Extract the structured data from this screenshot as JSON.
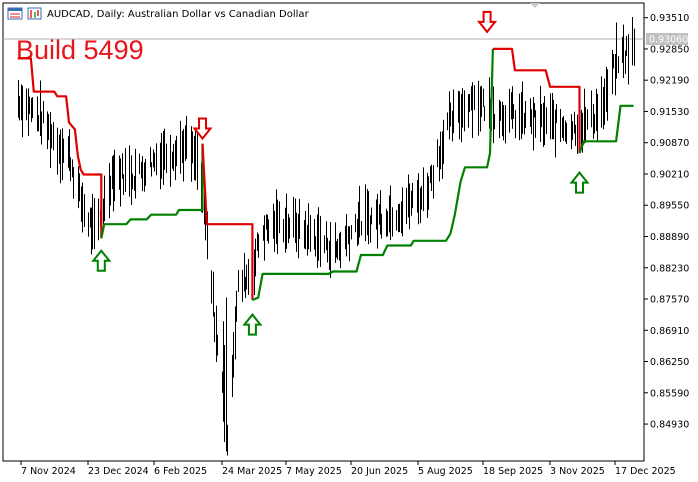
{
  "window": {
    "symbol_title": "AUDCAD, Daily:  Australian Dollar vs Canadian Dollar"
  },
  "annotation": {
    "build_label": "Build 5499"
  },
  "colors": {
    "upper_line": "#e00000",
    "lower_line": "#008000",
    "bars": "#000000",
    "build_text": "#e8141b",
    "price_line": "#b0b0b0",
    "arrow_down": "#e00000",
    "arrow_up": "#008000"
  },
  "chart_data": {
    "type": "line",
    "title": "AUDCAD, Daily:  Australian Dollar vs Canadian Dollar",
    "current_price_label": "0.93060",
    "current_price": 0.9306,
    "ylim": [
      0.8415,
      0.9382
    ],
    "y_ticks": [
      "0.93510",
      "0.92850",
      "0.92190",
      "0.91530",
      "0.90870",
      "0.90210",
      "0.89550",
      "0.88890",
      "0.88230",
      "0.87570",
      "0.86910",
      "0.86250",
      "0.85590",
      "0.84930"
    ],
    "x_ticks": [
      "7 Nov 2024",
      "23 Dec 2024",
      "6 Feb 2025",
      "24 Mar 2025",
      "7 May 2025",
      "20 Jun 2025",
      "5 Aug 2025",
      "18 Sep 2025",
      "3 Nov 2025",
      "17 Dec 2025"
    ],
    "series": [
      {
        "style": "upper",
        "points": [
          [
            "2024-11-05",
            0.9265
          ],
          [
            "2024-11-14",
            0.9265
          ],
          [
            "2024-11-16",
            0.9195
          ],
          [
            "2024-11-30",
            0.9195
          ],
          [
            "2024-12-02",
            0.9185
          ],
          [
            "2024-12-08",
            0.9185
          ],
          [
            "2024-12-10",
            0.913
          ],
          [
            "2024-12-14",
            0.9115
          ],
          [
            "2024-12-16",
            0.906
          ],
          [
            "2024-12-18",
            0.903
          ],
          [
            "2024-12-20",
            0.902
          ],
          [
            "2025-01-01",
            0.902
          ],
          [
            "2025-01-01",
            0.8885
          ]
        ]
      },
      {
        "style": "lower",
        "points": [
          [
            "2025-01-01",
            0.8885
          ],
          [
            "2025-01-03",
            0.8915
          ],
          [
            "2025-01-18",
            0.8915
          ],
          [
            "2025-01-21",
            0.8925
          ],
          [
            "2025-02-01",
            0.8925
          ],
          [
            "2025-02-04",
            0.8935
          ],
          [
            "2025-02-21",
            0.8935
          ],
          [
            "2025-02-23",
            0.8945
          ],
          [
            "2025-03-11",
            0.8945
          ],
          [
            "2025-03-11",
            0.9085
          ]
        ]
      },
      {
        "style": "upper",
        "points": [
          [
            "2025-03-11",
            0.9085
          ],
          [
            "2025-03-14",
            0.8915
          ],
          [
            "2025-04-14",
            0.8915
          ],
          [
            "2025-04-14",
            0.8755
          ]
        ]
      },
      {
        "style": "lower",
        "points": [
          [
            "2025-04-14",
            0.8755
          ],
          [
            "2025-04-18",
            0.876
          ],
          [
            "2025-04-21",
            0.881
          ],
          [
            "2025-06-05",
            0.881
          ],
          [
            "2025-06-08",
            0.8815
          ],
          [
            "2025-06-24",
            0.8815
          ],
          [
            "2025-06-27",
            0.885
          ],
          [
            "2025-07-12",
            0.885
          ],
          [
            "2025-07-15",
            0.887
          ],
          [
            "2025-07-31",
            0.887
          ],
          [
            "2025-08-02",
            0.888
          ],
          [
            "2025-08-24",
            0.888
          ],
          [
            "2025-08-27",
            0.8895
          ],
          [
            "2025-08-30",
            0.8935
          ],
          [
            "2025-09-03",
            0.9005
          ],
          [
            "2025-09-06",
            0.9035
          ],
          [
            "2025-09-21",
            0.9035
          ],
          [
            "2025-09-23",
            0.9065
          ],
          [
            "2025-09-25",
            0.9285
          ]
        ]
      },
      {
        "style": "upper",
        "points": [
          [
            "2025-09-25",
            0.9285
          ],
          [
            "2025-10-08",
            0.9285
          ],
          [
            "2025-10-10",
            0.924
          ],
          [
            "2025-10-31",
            0.924
          ],
          [
            "2025-11-03",
            0.9205
          ],
          [
            "2025-11-23",
            0.9205
          ],
          [
            "2025-11-23",
            0.9065
          ]
        ]
      },
      {
        "style": "lower",
        "points": [
          [
            "2025-11-23",
            0.9065
          ],
          [
            "2025-11-26",
            0.909
          ],
          [
            "2025-12-18",
            0.909
          ],
          [
            "2025-12-21",
            0.9165
          ],
          [
            "2025-12-30",
            0.9165
          ]
        ]
      }
    ],
    "bar_path": [
      [
        "2024-11-05",
        0.918
      ],
      [
        "2024-11-20",
        0.914
      ],
      [
        "2024-12-03",
        0.908
      ],
      [
        "2024-12-10",
        0.906
      ],
      [
        "2024-12-18",
        0.896
      ],
      [
        "2024-12-28",
        0.889
      ],
      [
        "2025-01-08",
        0.902
      ],
      [
        "2025-01-24",
        0.902
      ],
      [
        "2025-02-10",
        0.906
      ],
      [
        "2025-02-28",
        0.908
      ],
      [
        "2025-03-08",
        0.904
      ],
      [
        "2025-03-14",
        0.888
      ],
      [
        "2025-03-22",
        0.862
      ],
      [
        "2025-03-28",
        0.848
      ],
      [
        "2025-04-04",
        0.878
      ],
      [
        "2025-04-14",
        0.882
      ],
      [
        "2025-04-20",
        0.89
      ],
      [
        "2025-05-05",
        0.892
      ],
      [
        "2025-05-20",
        0.89
      ],
      [
        "2025-06-10",
        0.886
      ],
      [
        "2025-06-25",
        0.892
      ],
      [
        "2025-07-20",
        0.894
      ],
      [
        "2025-08-10",
        0.898
      ],
      [
        "2025-08-25",
        0.912
      ],
      [
        "2025-09-10",
        0.918
      ],
      [
        "2025-09-28",
        0.915
      ],
      [
        "2025-10-15",
        0.914
      ],
      [
        "2025-11-01",
        0.913
      ],
      [
        "2025-11-18",
        0.912
      ],
      [
        "2025-11-28",
        0.913
      ],
      [
        "2025-12-10",
        0.917
      ],
      [
        "2025-12-18",
        0.926
      ],
      [
        "2025-12-30",
        0.929
      ]
    ],
    "arrows": [
      {
        "dir": "down",
        "date": "2025-03-11",
        "value": 0.9115
      },
      {
        "dir": "down",
        "date": "2025-09-21",
        "value": 0.934
      },
      {
        "dir": "up",
        "date": "2025-01-01",
        "value": 0.884
      },
      {
        "dir": "up",
        "date": "2025-04-14",
        "value": 0.8705
      },
      {
        "dir": "up",
        "date": "2025-11-23",
        "value": 0.9005
      }
    ]
  }
}
